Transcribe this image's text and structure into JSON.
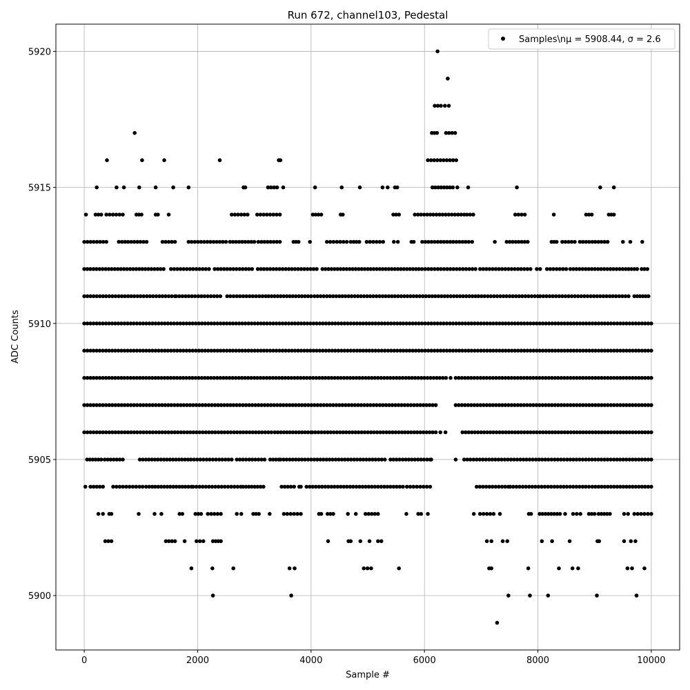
{
  "chart_data": {
    "type": "scatter",
    "title": "Run 672, channel103, Pedestal",
    "xlabel": "Sample #",
    "ylabel": "ADC Counts",
    "xlim": [
      -500,
      10500
    ],
    "ylim": [
      5898,
      5921
    ],
    "xticks": [
      0,
      2000,
      4000,
      6000,
      8000,
      10000
    ],
    "xtick_labels": [
      "0",
      "2000",
      "4000",
      "6000",
      "8000",
      "10000"
    ],
    "yticks": [
      5900,
      5905,
      5910,
      5915,
      5920
    ],
    "ytick_labels": [
      "5900",
      "5905",
      "5910",
      "5915",
      "5920"
    ],
    "grid": true,
    "legend_position": "top-right",
    "marker_color": "#000000",
    "series": [
      {
        "name": "Samples\\n$\\mu$ = 5908.44, $\\sigma$ = 2.6",
        "legend_label": "Samples\\nμ = 5908.44, σ = 2.6",
        "n_samples": 10000,
        "level_ranges": [
          {
            "y": 5920,
            "ranges": [
              [
                6230,
                6230
              ]
            ]
          },
          {
            "y": 5919,
            "ranges": [
              [
                6410,
                6410
              ]
            ]
          },
          {
            "y": 5918,
            "ranges": [
              [
                6180,
                6290
              ],
              [
                6360,
                6430
              ]
            ]
          },
          {
            "y": 5917,
            "ranges": [
              [
                890,
                890
              ],
              [
                6130,
                6220
              ],
              [
                6380,
                6540
              ]
            ]
          },
          {
            "y": 5916,
            "ranges": [
              [
                400,
                400
              ],
              [
                1020,
                1020
              ],
              [
                1410,
                1410
              ],
              [
                2390,
                2390
              ],
              [
                3430,
                3460
              ],
              [
                6060,
                6560
              ]
            ]
          },
          {
            "y": 5915,
            "ranges": [
              [
                220,
                220
              ],
              [
                570,
                570
              ],
              [
                700,
                700
              ],
              [
                970,
                970
              ],
              [
                1260,
                1260
              ],
              [
                1570,
                1570
              ],
              [
                1840,
                1840
              ],
              [
                2810,
                2840
              ],
              [
                3240,
                3400
              ],
              [
                3510,
                3510
              ],
              [
                4070,
                4070
              ],
              [
                4540,
                4540
              ],
              [
                4860,
                4860
              ],
              [
                5260,
                5260
              ],
              [
                5350,
                5350
              ],
              [
                5480,
                5520
              ],
              [
                6140,
                6500
              ],
              [
                6580,
                6580
              ],
              [
                6770,
                6770
              ],
              [
                7630,
                7630
              ],
              [
                9100,
                9100
              ],
              [
                9340,
                9340
              ]
            ]
          },
          {
            "y": 5914,
            "ranges": [
              [
                30,
                30
              ],
              [
                200,
                300
              ],
              [
                390,
                680
              ],
              [
                920,
                1010
              ],
              [
                1260,
                1300
              ],
              [
                1490,
                1490
              ],
              [
                2600,
                2880
              ],
              [
                3050,
                3450
              ],
              [
                4030,
                4180
              ],
              [
                4520,
                4560
              ],
              [
                5450,
                5550
              ],
              [
                5830,
                6700
              ],
              [
                6750,
                6860
              ],
              [
                7600,
                7770
              ],
              [
                8280,
                8280
              ],
              [
                8850,
                8950
              ],
              [
                9250,
                9340
              ]
            ]
          },
          {
            "y": 5913,
            "ranges": [
              [
                0,
                390
              ],
              [
                610,
                1100
              ],
              [
                1380,
                1600
              ],
              [
                1840,
                2500
              ],
              [
                2570,
                3000
              ],
              [
                3070,
                3450
              ],
              [
                3690,
                3780
              ],
              [
                3980,
                4000
              ],
              [
                4280,
                4630
              ],
              [
                4700,
                4850
              ],
              [
                4980,
                5270
              ],
              [
                5460,
                5530
              ],
              [
                5770,
                5810
              ],
              [
                5960,
                6780
              ],
              [
                6840,
                6860
              ],
              [
                7240,
                7250
              ],
              [
                7450,
                7820
              ],
              [
                8240,
                8330
              ],
              [
                8430,
                8650
              ],
              [
                8740,
                9230
              ],
              [
                9500,
                9500
              ],
              [
                9630,
                9650
              ],
              [
                9840,
                9840
              ]
            ]
          },
          {
            "y": 5912,
            "ranges": [
              [
                0,
                1400
              ],
              [
                1530,
                2200
              ],
              [
                2300,
                2960
              ],
              [
                3060,
                4100
              ],
              [
                4200,
                5000
              ],
              [
                5050,
                5850
              ],
              [
                5900,
                6900
              ],
              [
                6980,
                7870
              ],
              [
                7980,
                8040
              ],
              [
                8160,
                8500
              ],
              [
                8570,
                9550
              ],
              [
                9600,
                9750
              ],
              [
                9830,
                9930
              ]
            ]
          },
          {
            "y": 5911,
            "ranges": [
              [
                0,
                1600
              ],
              [
                1620,
                2400
              ],
              [
                2520,
                3200
              ],
              [
                3250,
                4000
              ],
              [
                4060,
                6900
              ],
              [
                6950,
                8000
              ],
              [
                8040,
                9600
              ],
              [
                9700,
                9950
              ]
            ]
          },
          {
            "y": 5910,
            "ranges": [
              [
                0,
                10000
              ]
            ]
          },
          {
            "y": 5909,
            "ranges": [
              [
                0,
                10000
              ]
            ]
          },
          {
            "y": 5908,
            "ranges": [
              [
                0,
                6380
              ],
              [
                6460,
                6480
              ],
              [
                6550,
                10000
              ]
            ]
          },
          {
            "y": 5907,
            "ranges": [
              [
                0,
                6200
              ],
              [
                6550,
                10000
              ]
            ]
          },
          {
            "y": 5906,
            "ranges": [
              [
                0,
                3300
              ],
              [
                3360,
                4000
              ],
              [
                4020,
                6200
              ],
              [
                6280,
                6280
              ],
              [
                6370,
                6370
              ],
              [
                6670,
                10000
              ]
            ]
          },
          {
            "y": 5905,
            "ranges": [
              [
                50,
                300
              ],
              [
                360,
                680
              ],
              [
                980,
                1830
              ],
              [
                1880,
                2600
              ],
              [
                2690,
                3180
              ],
              [
                3280,
                3430
              ],
              [
                3460,
                5300
              ],
              [
                5400,
                6100
              ],
              [
                6120,
                6120
              ],
              [
                6550,
                6550
              ],
              [
                6700,
                10000
              ]
            ]
          },
          {
            "y": 5904,
            "ranges": [
              [
                20,
                20
              ],
              [
                110,
                330
              ],
              [
                510,
                1030
              ],
              [
                1090,
                1200
              ],
              [
                1250,
                1890
              ],
              [
                1920,
                2760
              ],
              [
                2800,
                3160
              ],
              [
                3480,
                3700
              ],
              [
                3790,
                3820
              ],
              [
                3920,
                5620
              ],
              [
                5690,
                6100
              ],
              [
                6920,
                7480
              ],
              [
                7510,
                8900
              ],
              [
                8960,
                10000
              ]
            ]
          },
          {
            "y": 5903,
            "ranges": [
              [
                250,
                330
              ],
              [
                440,
                480
              ],
              [
                960,
                960
              ],
              [
                1240,
                1240
              ],
              [
                1360,
                1360
              ],
              [
                1680,
                1730
              ],
              [
                1960,
                2060
              ],
              [
                2180,
                2410
              ],
              [
                2690,
                2770
              ],
              [
                2980,
                3080
              ],
              [
                3270,
                3270
              ],
              [
                3520,
                3820
              ],
              [
                4140,
                4180
              ],
              [
                4290,
                4390
              ],
              [
                4650,
                4650
              ],
              [
                4790,
                4810
              ],
              [
                4960,
                5180
              ],
              [
                5680,
                5680
              ],
              [
                5890,
                5940
              ],
              [
                6060,
                6060
              ],
              [
                6870,
                6870
              ],
              [
                6980,
                7220
              ],
              [
                7330,
                7350
              ],
              [
                7840,
                7880
              ],
              [
                8030,
                8390
              ],
              [
                8480,
                8500
              ],
              [
                8620,
                8750
              ],
              [
                8900,
                9000
              ],
              [
                9070,
                9270
              ],
              [
                9520,
                9590
              ],
              [
                9700,
                10000
              ]
            ]
          },
          {
            "y": 5902,
            "ranges": [
              [
                370,
                480
              ],
              [
                1440,
                1600
              ],
              [
                1770,
                1770
              ],
              [
                1980,
                2100
              ],
              [
                2270,
                2410
              ],
              [
                4300,
                4300
              ],
              [
                4660,
                4700
              ],
              [
                4870,
                4870
              ],
              [
                5030,
                5030
              ],
              [
                5180,
                5240
              ],
              [
                7100,
                7180
              ],
              [
                7380,
                7460
              ],
              [
                8070,
                8070
              ],
              [
                8250,
                8250
              ],
              [
                8560,
                8560
              ],
              [
                9050,
                9080
              ],
              [
                9520,
                9520
              ],
              [
                9640,
                9720
              ]
            ]
          },
          {
            "y": 5901,
            "ranges": [
              [
                1890,
                1890
              ],
              [
                2260,
                2260
              ],
              [
                2630,
                2630
              ],
              [
                3620,
                3620
              ],
              [
                3710,
                3710
              ],
              [
                4930,
                5060
              ],
              [
                5550,
                5550
              ],
              [
                7140,
                7180
              ],
              [
                7830,
                7830
              ],
              [
                8370,
                8370
              ],
              [
                8610,
                8610
              ],
              [
                8710,
                8710
              ],
              [
                9580,
                9660
              ],
              [
                9880,
                9880
              ]
            ]
          },
          {
            "y": 5900,
            "ranges": [
              [
                2270,
                2270
              ],
              [
                3650,
                3650
              ],
              [
                7480,
                7480
              ],
              [
                7860,
                7860
              ],
              [
                8180,
                8180
              ],
              [
                9040,
                9040
              ],
              [
                9740,
                9740
              ]
            ]
          },
          {
            "y": 5899,
            "ranges": [
              [
                7280,
                7280
              ]
            ]
          }
        ]
      }
    ]
  }
}
